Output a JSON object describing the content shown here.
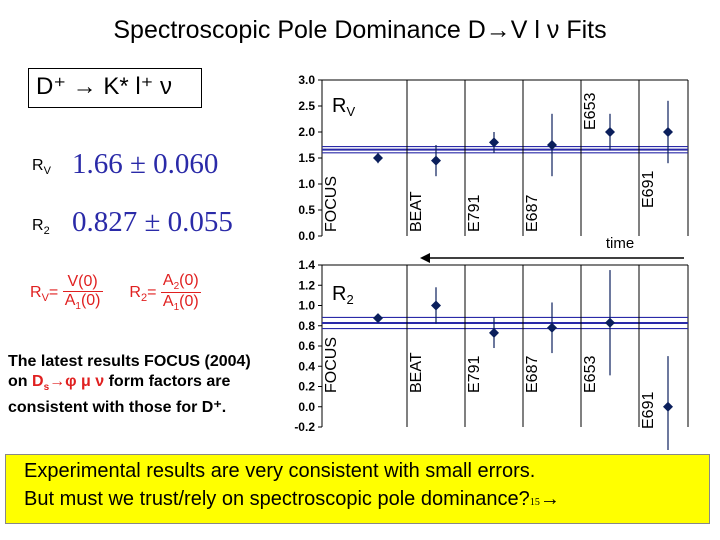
{
  "title": "Spectroscopic Pole Dominance D→V l ν Fits",
  "decay": "D⁺ → K* l⁺ ν",
  "rv_label": "R",
  "rv_sub": "V",
  "rv_value": "1.66 ± 0.060",
  "r2_label": "R",
  "r2_sub": "2",
  "r2_value": "0.827 ± 0.055",
  "formula_rv": {
    "lhs": "R",
    "lhs_sub": "V",
    "num": "V(0)",
    "den": "A",
    "den_sub": "1",
    "den_tail": "(0)"
  },
  "formula_r2": {
    "lhs": "R",
    "lhs_sub": "2",
    "num": "A",
    "num_sub": "2",
    "num_tail": "(0)",
    "den": "A",
    "den_sub": "1",
    "den_tail": "(0)"
  },
  "note": {
    "line1": "The latest results FOCUS (2004)",
    "line2_a": "on ",
    "line2_red": "D",
    "line2_red_sub": "s",
    "line2_red2": "→φ μ ν",
    "line2_b": " form factors are",
    "line3": "consistent with those for D⁺."
  },
  "banner": {
    "line1": "Experimental results are very consistent with small errors.",
    "line2": "But must we trust/rely on spectroscopic pole dominance?",
    "page": "15",
    "arrow": "→"
  },
  "time_label": "time",
  "colors": {
    "highlight": "#ffff00",
    "accent_red": "#e02020",
    "band": "#2a2aa8",
    "point": "#0b1f5c"
  },
  "chart_data": [
    {
      "type": "scatter",
      "title": "",
      "series_label": "R",
      "series_label_sub": "V",
      "ylim": [
        0.0,
        3.0
      ],
      "yticks": [
        "3.0",
        "2.5",
        "2.0",
        "1.5",
        "1.0",
        "0.5",
        "0.0"
      ],
      "band_center": 1.66,
      "band_error": 0.06,
      "points": [
        {
          "experiment": "FOCUS",
          "value": 1.5,
          "error_up": 0.1,
          "error_down": 0.1
        },
        {
          "experiment": "BEAT",
          "value": 1.45,
          "error_up": 0.3,
          "error_down": 0.3
        },
        {
          "experiment": "E791",
          "value": 1.8,
          "error_up": 0.2,
          "error_down": 0.2
        },
        {
          "experiment": "E687",
          "value": 1.75,
          "error_up": 0.6,
          "error_down": 0.6
        },
        {
          "experiment": "E653",
          "value": 2.0,
          "error_up": 0.35,
          "error_down": 0.35
        },
        {
          "experiment": "E691",
          "value": 2.0,
          "error_up": 0.6,
          "error_down": 0.6
        }
      ]
    },
    {
      "type": "scatter",
      "title": "",
      "series_label": "R",
      "series_label_sub": "2",
      "ylim": [
        -0.2,
        1.4
      ],
      "yticks": [
        "1.4",
        "1.2",
        "1.0",
        "0.8",
        "0.6",
        "0.4",
        "0.2",
        "0.0",
        "-0.2"
      ],
      "band_center": 0.827,
      "band_error": 0.055,
      "points": [
        {
          "experiment": "FOCUS",
          "value": 0.875,
          "error_up": 0.03,
          "error_down": 0.03
        },
        {
          "experiment": "BEAT",
          "value": 1.0,
          "error_up": 0.18,
          "error_down": 0.18
        },
        {
          "experiment": "E791",
          "value": 0.73,
          "error_up": 0.15,
          "error_down": 0.15
        },
        {
          "experiment": "E687",
          "value": 0.78,
          "error_up": 0.25,
          "error_down": 0.25
        },
        {
          "experiment": "E653",
          "value": 0.83,
          "error_up": 0.52,
          "error_down": 0.52
        },
        {
          "experiment": "E691",
          "value": 0.0,
          "error_up": 0.5,
          "error_down": 0.5
        }
      ]
    }
  ]
}
